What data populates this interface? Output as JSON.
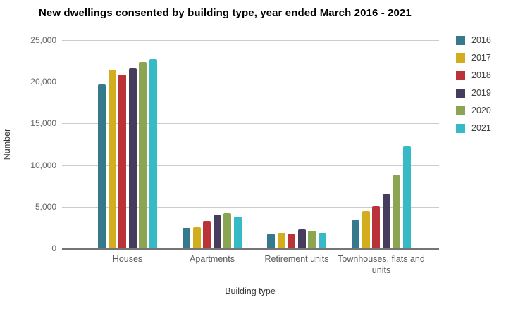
{
  "title": "New dwellings consented by building type, year ended March 2016 - 2021",
  "chart_data": {
    "type": "bar",
    "title": "New dwellings consented by building type, year ended March 2016 - 2021",
    "xlabel": "Building type",
    "ylabel": "Number",
    "categories": [
      "Houses",
      "Apartments",
      "Retirement units",
      "Townhouses, flats and units"
    ],
    "series": [
      {
        "name": "2016",
        "color": "#36798D",
        "values": [
          19700,
          2450,
          1800,
          3400
        ]
      },
      {
        "name": "2017",
        "color": "#D3AD1E",
        "values": [
          21450,
          2550,
          1900,
          4500
        ]
      },
      {
        "name": "2018",
        "color": "#BA3338",
        "values": [
          20900,
          3300,
          1750,
          5100
        ]
      },
      {
        "name": "2019",
        "color": "#463D5E",
        "values": [
          21600,
          3950,
          2250,
          6500
        ]
      },
      {
        "name": "2020",
        "color": "#8CA552",
        "values": [
          22350,
          4250,
          2100,
          8800
        ]
      },
      {
        "name": "2021",
        "color": "#36BAC6",
        "values": [
          22750,
          3800,
          1900,
          12250
        ]
      }
    ],
    "ylim": [
      0,
      25000
    ],
    "ytick_step": 5000,
    "ytick_labels": [
      "0",
      "5,000",
      "10,000",
      "15,000",
      "20,000",
      "25,000"
    ],
    "grid": true,
    "legend_position": "right"
  },
  "colors": {
    "background": "#ffffff",
    "gridline": "#cccccc",
    "axis_line": "#757575",
    "tick_label": "#666666",
    "category_label": "#575757",
    "axis_title": "#333333",
    "legend_label": "#424242",
    "title": "#000000"
  }
}
